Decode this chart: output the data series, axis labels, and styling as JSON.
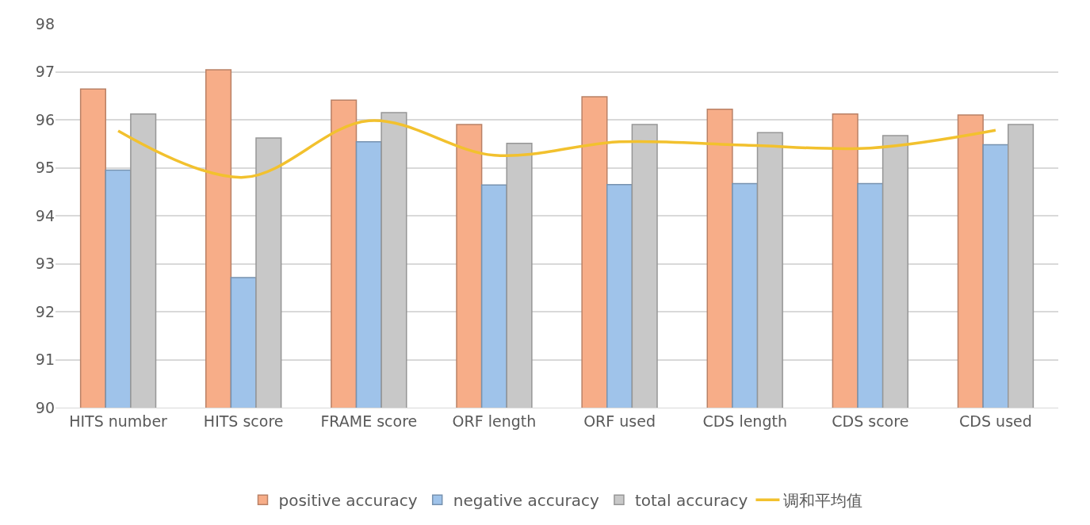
{
  "chart_data": {
    "type": "bar",
    "categories": [
      "HITS number",
      "HITS score",
      "FRAME score",
      "ORF length",
      "ORF used",
      "CDS length",
      "CDS score",
      "CDS used"
    ],
    "series": [
      {
        "name": "positive accuracy",
        "color": "#f7ad88",
        "values": [
          96.64,
          97.04,
          96.41,
          95.9,
          96.48,
          96.22,
          96.12,
          96.1
        ]
      },
      {
        "name": "negative accuracy",
        "color": "#9fc3ea",
        "values": [
          94.95,
          92.71,
          95.54,
          94.64,
          94.65,
          94.67,
          94.67,
          95.48
        ]
      },
      {
        "name": "total accuracy",
        "color": "#c8c8c8",
        "values": [
          96.12,
          95.62,
          96.15,
          95.51,
          95.9,
          95.73,
          95.67,
          95.9
        ]
      },
      {
        "name": "调和平均值",
        "type": "line",
        "color": "#f2c12e",
        "values": [
          95.77,
          94.8,
          95.98,
          95.26,
          95.54,
          95.47,
          95.41,
          95.78
        ]
      }
    ],
    "ylim": [
      90,
      98
    ],
    "yticks": [
      90,
      91,
      92,
      93,
      94,
      95,
      96,
      97,
      98
    ],
    "grid": "y",
    "legend": "bottom",
    "marker": "none"
  }
}
